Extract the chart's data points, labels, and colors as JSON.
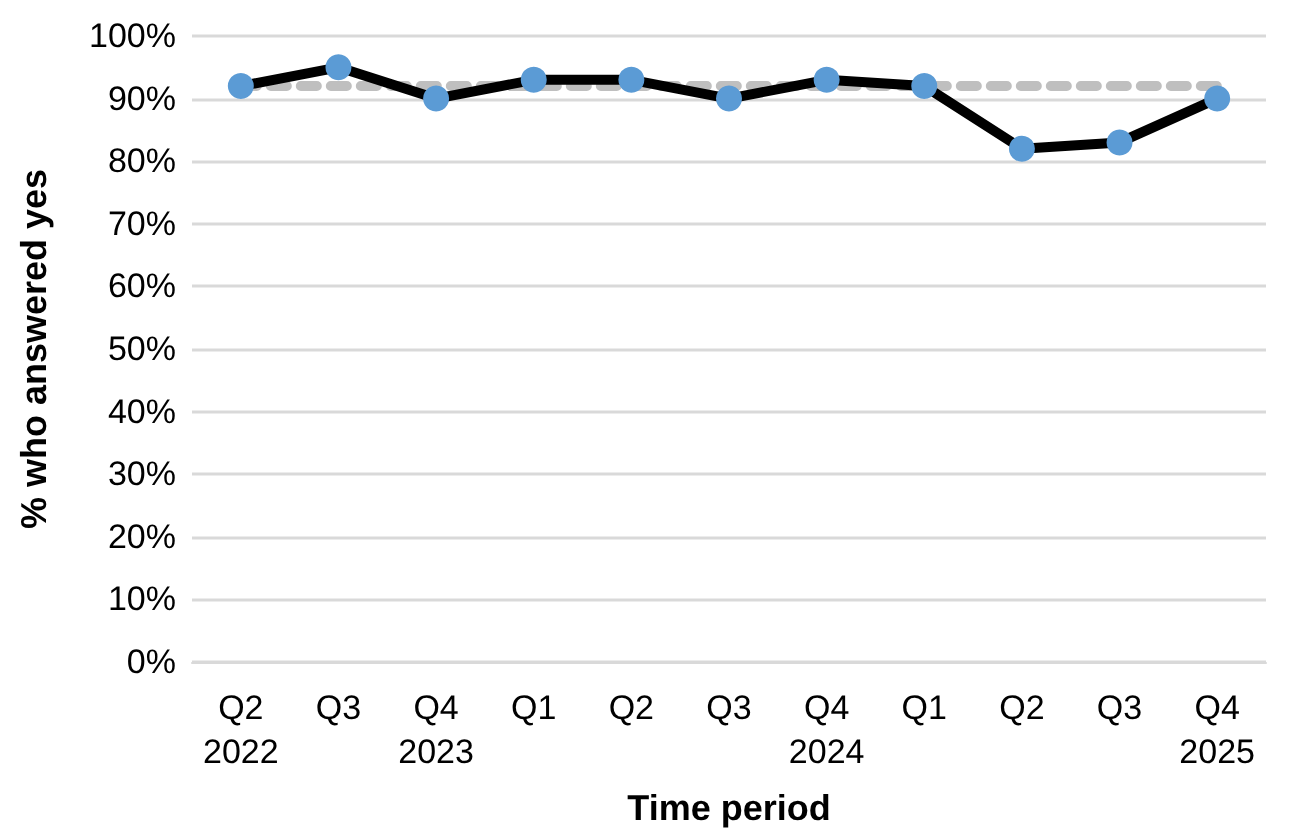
{
  "chart_data": {
    "type": "line",
    "xlabel": "Time period",
    "ylabel": "% who answered yes",
    "categories": [
      "Q2\n2022",
      "Q3",
      "Q4\n2023",
      "Q1",
      "Q2",
      "Q3",
      "Q4\n2024",
      "Q1",
      "Q2",
      "Q3",
      "Q4\n2025"
    ],
    "series": [
      {
        "color": "#bfbfbf",
        "line_style": "dashed",
        "marker": "none",
        "values": [
          92,
          92,
          92,
          92,
          92,
          92,
          92,
          92,
          92,
          92,
          92
        ]
      },
      {
        "color": "#000000",
        "marker": "circle",
        "line_style": "solid",
        "values": [
          92,
          95,
          90,
          93,
          93,
          90,
          93,
          92,
          82,
          83,
          90
        ]
      }
    ],
    "ylim": [
      0,
      100
    ],
    "yticks": [
      {
        "value": 0,
        "label": "0%"
      },
      {
        "value": 10,
        "label": "10%"
      },
      {
        "value": 20,
        "label": "20%"
      },
      {
        "value": 30,
        "label": "30%"
      },
      {
        "value": 40,
        "label": "40%"
      },
      {
        "value": 50,
        "label": "50%"
      },
      {
        "value": 60,
        "label": "60%"
      },
      {
        "value": 70,
        "label": "70%"
      },
      {
        "value": 80,
        "label": "80%"
      },
      {
        "value": 90,
        "label": "90%"
      },
      {
        "value": 100,
        "label": "100%"
      }
    ],
    "grid": "y"
  }
}
